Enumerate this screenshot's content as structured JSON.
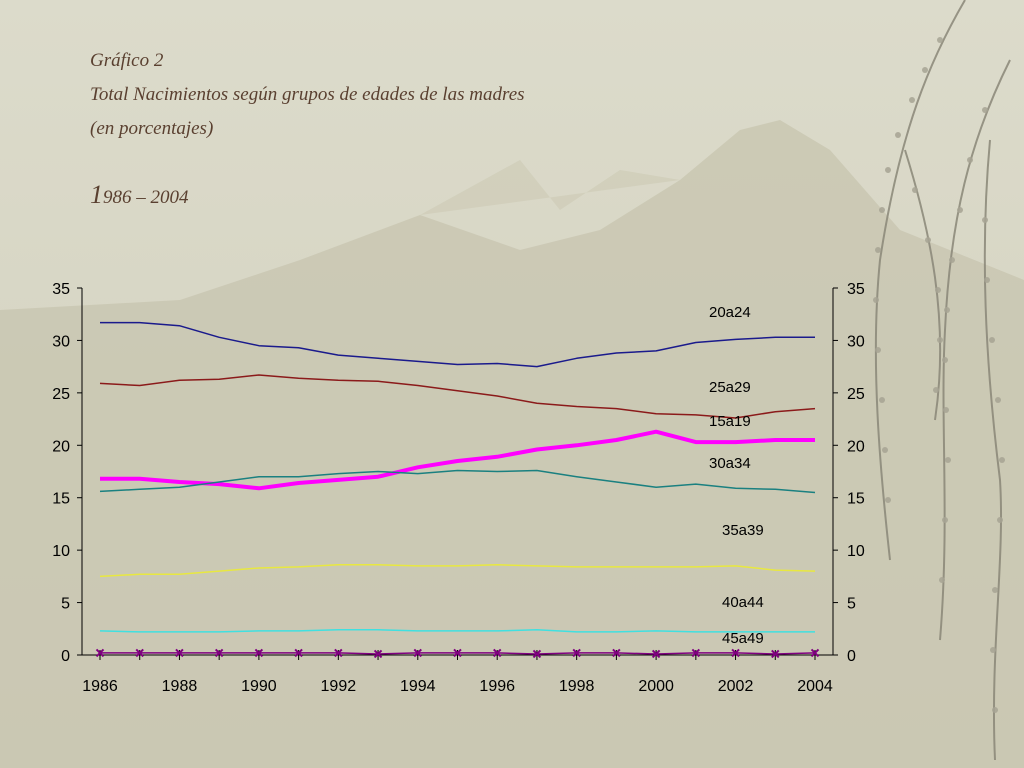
{
  "slide": {
    "title_line1": "Gráfico 2",
    "title_line2": "Total Nacimientos según grupos de edades de las madres",
    "title_line3": "(en porcentajes)",
    "period_first_char": "1",
    "period_rest": "986 – 2004"
  },
  "chart_data": {
    "type": "line",
    "title": "",
    "xlabel": "",
    "ylabel": "",
    "ylim": [
      0,
      35
    ],
    "yticks": [
      0,
      5,
      10,
      15,
      20,
      25,
      30,
      35
    ],
    "xlim": [
      1986,
      2004
    ],
    "xtick_labels": [
      "1986",
      "1988",
      "1990",
      "1992",
      "1994",
      "1996",
      "1998",
      "2000",
      "2002",
      "2004"
    ],
    "secondary_y_axis": true,
    "grid": false,
    "legend": "inline labels at right",
    "x": [
      1986,
      1987,
      1988,
      1989,
      1990,
      1991,
      1992,
      1993,
      1994,
      1995,
      1996,
      1997,
      1998,
      1999,
      2000,
      2001,
      2002,
      2003,
      2004
    ],
    "series": [
      {
        "name": "20a24",
        "color": "#1a1a8c",
        "width": 1.5,
        "values": [
          31.7,
          31.7,
          31.4,
          30.3,
          29.5,
          29.3,
          28.6,
          28.3,
          28.0,
          27.7,
          27.8,
          27.5,
          28.3,
          28.8,
          29.0,
          29.8,
          30.1,
          30.3,
          30.3
        ]
      },
      {
        "name": "25a29",
        "color": "#8b1a1a",
        "width": 1.5,
        "values": [
          25.9,
          25.7,
          26.2,
          26.3,
          26.7,
          26.4,
          26.2,
          26.1,
          25.7,
          25.2,
          24.7,
          24.0,
          23.7,
          23.5,
          23.0,
          22.9,
          22.6,
          23.2,
          23.5
        ]
      },
      {
        "name": "15a19",
        "color": "#ff00ff",
        "width": 4,
        "values": [
          16.8,
          16.8,
          16.5,
          16.3,
          15.9,
          16.4,
          16.7,
          17.0,
          17.9,
          18.5,
          18.9,
          19.6,
          20.0,
          20.5,
          21.3,
          20.3,
          20.3,
          20.5,
          20.5
        ]
      },
      {
        "name": "30a34",
        "color": "#1a8080",
        "width": 1.5,
        "values": [
          15.6,
          15.8,
          16.0,
          16.5,
          17.0,
          17.0,
          17.3,
          17.5,
          17.3,
          17.6,
          17.5,
          17.6,
          17.0,
          16.5,
          16.0,
          16.3,
          15.9,
          15.8,
          15.5
        ]
      },
      {
        "name": "35a39",
        "color": "#e8e840",
        "width": 1.5,
        "values": [
          7.5,
          7.7,
          7.7,
          8.0,
          8.3,
          8.4,
          8.6,
          8.6,
          8.5,
          8.5,
          8.6,
          8.5,
          8.4,
          8.4,
          8.4,
          8.4,
          8.5,
          8.1,
          8.0
        ]
      },
      {
        "name": "40a44",
        "color": "#40e0e0",
        "width": 1.5,
        "values": [
          2.3,
          2.2,
          2.2,
          2.2,
          2.3,
          2.3,
          2.4,
          2.4,
          2.3,
          2.3,
          2.3,
          2.4,
          2.2,
          2.2,
          2.3,
          2.2,
          2.2,
          2.2,
          2.2
        ]
      },
      {
        "name": "45a49",
        "color": "#800080",
        "width": 1.5,
        "marker": "x",
        "values": [
          0.2,
          0.2,
          0.2,
          0.2,
          0.2,
          0.2,
          0.2,
          0.1,
          0.2,
          0.2,
          0.2,
          0.1,
          0.2,
          0.2,
          0.1,
          0.2,
          0.2,
          0.1,
          0.2
        ]
      }
    ],
    "inline_labels": [
      "20a24",
      "25a29",
      "15a19",
      "30a34",
      "35a39",
      "40a44",
      "45a49"
    ]
  }
}
